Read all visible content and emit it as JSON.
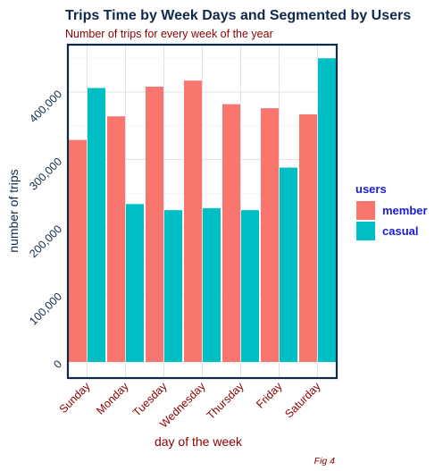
{
  "chart_data": {
    "type": "bar",
    "title": "Trips Time by Week Days and Segmented by Users",
    "subtitle": "Number of trips for every week of the year",
    "xlabel": "day of the week",
    "ylabel": "number of trips",
    "caption": "Fig 4",
    "categories": [
      "Sunday",
      "Monday",
      "Tuesday",
      "Wednesday",
      "Thursday",
      "Friday",
      "Saturday"
    ],
    "series": [
      {
        "name": "member",
        "color": "#F8766D",
        "values": [
          329000,
          364000,
          408000,
          417000,
          382000,
          376000,
          367000
        ]
      },
      {
        "name": "casual",
        "color": "#00BFC4",
        "values": [
          406000,
          234000,
          225000,
          228000,
          225000,
          288000,
          450000
        ]
      }
    ],
    "ylim": [
      0,
      460000
    ],
    "yticks": [
      0,
      100000,
      200000,
      300000,
      400000
    ],
    "ytick_labels": [
      "0",
      "100,000",
      "200,000",
      "300,000",
      "400,000"
    ],
    "legend": {
      "title": "users",
      "position": "right"
    },
    "grid": true
  }
}
